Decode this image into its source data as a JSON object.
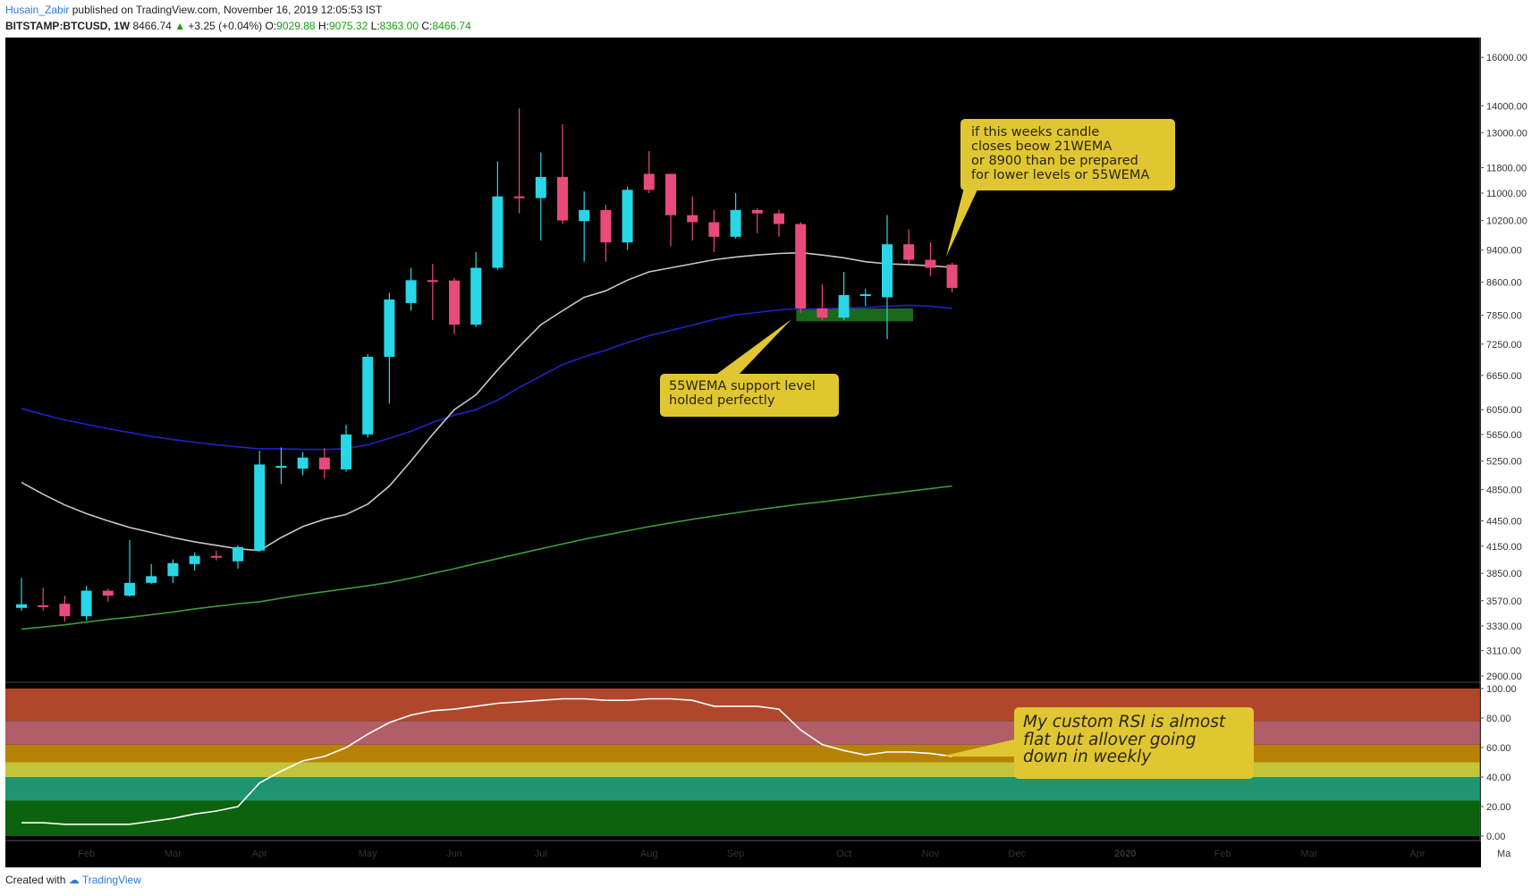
{
  "header": {
    "author": "Husain_Zabir",
    "published_text": "published on TradingView.com, November 16, 2019 12:05:53 IST",
    "symbol": "BITSTAMP:BTCUSD, 1W",
    "last": "8466.74",
    "change": "+3.25 (+0.04%)",
    "o_label": "O:",
    "o_value": "9029.88",
    "h_label": "H:",
    "h_value": "9075.32",
    "l_label": "L:",
    "l_value": "8363.00",
    "c_label": "C:",
    "c_value": "8466.74"
  },
  "footer": {
    "created_with": "Created with",
    "brand": "TradingView"
  },
  "annotations": {
    "top_right": [
      "if this weeks candle",
      "closes beow 21WEMA",
      "or 8900 than be prepared",
      "for lower levels or 55WEMA"
    ],
    "support": [
      "55WEMA support level",
      "holded perfectly"
    ],
    "rsi": [
      "My custom RSI is almost",
      "flat but allover going",
      "down in weekly"
    ]
  },
  "colors": {
    "background": "#000000",
    "up_candle": "#29d6e6",
    "down_candle": "#e94a7c",
    "ema21": "#c7c7c7",
    "ema55": "#2222c8",
    "ema200": "#3d9a3d",
    "support_box": "#1e7a1e",
    "callout": "#e0c631",
    "rsi_line": "#ffffff",
    "rsi_bands": [
      "#b0462a",
      "#b05e68",
      "#b78204",
      "#c2c43a",
      "#1f9470",
      "#0d620d"
    ]
  },
  "chart_data": [
    {
      "type": "candlestick",
      "title": "",
      "y_scale": "log",
      "ylim": [
        2850,
        16900
      ],
      "y_ticks": [
        2900,
        3110,
        3330,
        3570,
        3850,
        4150,
        4450,
        4850,
        5250,
        5650,
        6050,
        6650,
        7250,
        7850,
        8600,
        9400,
        10200,
        11000,
        11800,
        13000,
        14000,
        16000
      ],
      "y_tick_labels": [
        "2900.00",
        "3110.00",
        "3330.00",
        "3570.00",
        "3850.00",
        "4150.00",
        "4450.00",
        "4850.00",
        "5250.00",
        "5650.00",
        "6050.00",
        "6650.00",
        "7250.00",
        "7850.00",
        "8600.00",
        "9400.00",
        "10200.00",
        "11000.00",
        "11800.00",
        "13000.00",
        "14000.00",
        "16000.00"
      ],
      "x_labels": [
        {
          "label": "Feb",
          "week": 3
        },
        {
          "label": "Mar",
          "week": 7
        },
        {
          "label": "Apr",
          "week": 11
        },
        {
          "label": "May",
          "week": 16
        },
        {
          "label": "Jun",
          "week": 20
        },
        {
          "label": "Jul",
          "week": 24
        },
        {
          "label": "Aug",
          "week": 29
        },
        {
          "label": "Sep",
          "week": 33
        },
        {
          "label": "Oct",
          "week": 38
        },
        {
          "label": "Nov",
          "week": 42
        },
        {
          "label": "Dec",
          "week": 46
        },
        {
          "label": "2020",
          "week": 51
        },
        {
          "label": "Feb",
          "week": 55.5
        },
        {
          "label": "Mar",
          "week": 59.5
        },
        {
          "label": "Apr",
          "week": 64.5
        },
        {
          "label": "Ma",
          "week": 68.5
        }
      ],
      "candles": [
        {
          "o": 3500,
          "h": 3800,
          "l": 3470,
          "c": 3535
        },
        {
          "o": 3525,
          "h": 3700,
          "l": 3470,
          "c": 3520
        },
        {
          "o": 3540,
          "h": 3620,
          "l": 3370,
          "c": 3420
        },
        {
          "o": 3420,
          "h": 3720,
          "l": 3380,
          "c": 3670
        },
        {
          "o": 3670,
          "h": 3690,
          "l": 3560,
          "c": 3620
        },
        {
          "o": 3620,
          "h": 4220,
          "l": 3610,
          "c": 3750
        },
        {
          "o": 3750,
          "h": 3950,
          "l": 3740,
          "c": 3820
        },
        {
          "o": 3820,
          "h": 4000,
          "l": 3750,
          "c": 3960
        },
        {
          "o": 3950,
          "h": 4080,
          "l": 3880,
          "c": 4040
        },
        {
          "o": 4040,
          "h": 4100,
          "l": 3990,
          "c": 4030
        },
        {
          "o": 3980,
          "h": 4160,
          "l": 3900,
          "c": 4140
        },
        {
          "o": 4100,
          "h": 5400,
          "l": 4090,
          "c": 5200
        },
        {
          "o": 5180,
          "h": 5450,
          "l": 4930,
          "c": 5180
        },
        {
          "o": 5140,
          "h": 5380,
          "l": 5050,
          "c": 5300
        },
        {
          "o": 5300,
          "h": 5440,
          "l": 5000,
          "c": 5130
        },
        {
          "o": 5130,
          "h": 5800,
          "l": 5100,
          "c": 5650
        },
        {
          "o": 5650,
          "h": 7050,
          "l": 5600,
          "c": 7000
        },
        {
          "o": 7000,
          "h": 8350,
          "l": 6150,
          "c": 8200
        },
        {
          "o": 8120,
          "h": 8950,
          "l": 7950,
          "c": 8650
        },
        {
          "o": 8650,
          "h": 9050,
          "l": 7750,
          "c": 8640
        },
        {
          "o": 8640,
          "h": 8700,
          "l": 7450,
          "c": 7650
        },
        {
          "o": 7650,
          "h": 9350,
          "l": 7600,
          "c": 8950
        },
        {
          "o": 8950,
          "h": 12000,
          "l": 8900,
          "c": 10900
        },
        {
          "o": 10900,
          "h": 13900,
          "l": 10400,
          "c": 10850
        },
        {
          "o": 10850,
          "h": 12300,
          "l": 9650,
          "c": 11500
        },
        {
          "o": 11500,
          "h": 13300,
          "l": 10100,
          "c": 10200
        },
        {
          "o": 10180,
          "h": 11050,
          "l": 9100,
          "c": 10500
        },
        {
          "o": 10500,
          "h": 10650,
          "l": 9100,
          "c": 9600
        },
        {
          "o": 9600,
          "h": 11200,
          "l": 9400,
          "c": 11100
        },
        {
          "o": 11600,
          "h": 12350,
          "l": 11000,
          "c": 11100
        },
        {
          "o": 11600,
          "h": 11600,
          "l": 9500,
          "c": 10350
        },
        {
          "o": 10350,
          "h": 10900,
          "l": 9650,
          "c": 10150
        },
        {
          "o": 10150,
          "h": 10500,
          "l": 9350,
          "c": 9750
        },
        {
          "o": 9750,
          "h": 11000,
          "l": 9700,
          "c": 10500
        },
        {
          "o": 10500,
          "h": 10550,
          "l": 9850,
          "c": 10400
        },
        {
          "o": 10400,
          "h": 10500,
          "l": 9750,
          "c": 10100
        },
        {
          "o": 10100,
          "h": 10150,
          "l": 7900,
          "c": 8000
        },
        {
          "o": 8000,
          "h": 8550,
          "l": 7750,
          "c": 7800
        },
        {
          "o": 7800,
          "h": 8850,
          "l": 7750,
          "c": 8300
        },
        {
          "o": 8320,
          "h": 8450,
          "l": 8050,
          "c": 8320
        },
        {
          "o": 8250,
          "h": 10350,
          "l": 7350,
          "c": 9550
        },
        {
          "o": 9550,
          "h": 9950,
          "l": 9050,
          "c": 9150
        },
        {
          "o": 9150,
          "h": 9600,
          "l": 8750,
          "c": 8950
        },
        {
          "o": 9030,
          "h": 9075,
          "l": 8363,
          "c": 8467
        }
      ],
      "series": [
        {
          "values": [
            6070,
            5970,
            5880,
            5810,
            5740,
            5680,
            5620,
            5570,
            5530,
            5490,
            5460,
            5430,
            5430,
            5420,
            5420,
            5430,
            5490,
            5590,
            5700,
            5840,
            5960,
            6050,
            6210,
            6430,
            6640,
            6850,
            7000,
            7130,
            7280,
            7420,
            7530,
            7640,
            7760,
            7860,
            7910,
            7970,
            7990,
            7990,
            8010,
            8020,
            8050,
            8070,
            8050,
            8000
          ]
        },
        {
          "values": [
            4950,
            4790,
            4650,
            4540,
            4450,
            4370,
            4310,
            4250,
            4200,
            4160,
            4120,
            4100,
            4250,
            4380,
            4470,
            4530,
            4660,
            4900,
            5250,
            5650,
            6050,
            6300,
            6750,
            7200,
            7650,
            7950,
            8250,
            8400,
            8650,
            8850,
            8950,
            9050,
            9150,
            9220,
            9270,
            9310,
            9330,
            9270,
            9200,
            9100,
            9050,
            9030,
            9000,
            8960
          ]
        },
        {
          "values": [
            3300,
            3320,
            3340,
            3365,
            3390,
            3410,
            3435,
            3460,
            3490,
            3515,
            3540,
            3560,
            3595,
            3630,
            3660,
            3690,
            3720,
            3755,
            3800,
            3850,
            3900,
            3955,
            4010,
            4065,
            4120,
            4175,
            4230,
            4280,
            4330,
            4380,
            4425,
            4470,
            4510,
            4550,
            4590,
            4625,
            4660,
            4690,
            4725,
            4760,
            4795,
            4830,
            4865,
            4900
          ]
        }
      ]
    },
    {
      "type": "line",
      "title": "",
      "ylim": [
        0,
        100
      ],
      "y_ticks": [
        0,
        20,
        40,
        60,
        80,
        100
      ],
      "y_tick_labels": [
        "0.00",
        "20.00",
        "40.00",
        "60.00",
        "80.00",
        "100.00"
      ],
      "band_edges": [
        0,
        24,
        40,
        50,
        62,
        78,
        100
      ],
      "series": [
        {
          "values": [
            9,
            9,
            8,
            8,
            8,
            8,
            10,
            12,
            15,
            17,
            20,
            36,
            44,
            51,
            54,
            60,
            69,
            77,
            82,
            85,
            86,
            88,
            90,
            91,
            92,
            93,
            93,
            92,
            92,
            93,
            93,
            92,
            88,
            88,
            88,
            86,
            72,
            62,
            58,
            55,
            57,
            57,
            56,
            54
          ]
        }
      ]
    }
  ]
}
